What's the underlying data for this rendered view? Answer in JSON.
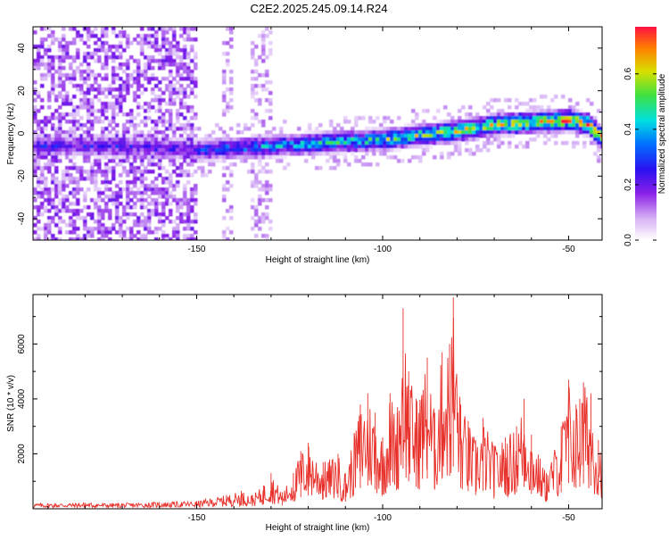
{
  "title": "C2E2.2025.245.09.14.R24",
  "colors": {
    "axis": "#000000",
    "snr_line": "#e8302a",
    "spectrogram_scale": [
      "#ffffff",
      "#c9a0f2",
      "#7a10e8",
      "#2a10f0",
      "#0080ff",
      "#00e0e0",
      "#40e040",
      "#d8e000",
      "#ff8000",
      "#ff1040"
    ]
  },
  "chart_data": [
    {
      "type": "heatmap",
      "xlabel": "Height of straight line (km)",
      "ylabel": "Frequency (Hz)",
      "xlim": [
        -194,
        -41
      ],
      "ylim": [
        -50,
        50
      ],
      "xticks": [
        -150,
        -100,
        -50
      ],
      "xtick_labels": [
        "-150",
        "-100",
        "-50"
      ],
      "yticks": [
        -40,
        -20,
        0,
        20,
        40
      ],
      "ytick_labels": [
        "-40",
        "-20",
        "0",
        "20",
        "40"
      ],
      "colorbar": {
        "label": "Normalized spectral amplitude",
        "range": [
          0,
          0.77
        ],
        "ticks": [
          0.0,
          0.2,
          0.4,
          0.6
        ],
        "tick_labels": [
          "0.0",
          "0.2",
          "0.4",
          "0.6"
        ]
      },
      "ridge": {
        "description_points": [
          [
            -174,
            -5
          ],
          [
            -150,
            -7
          ],
          [
            -130,
            -5
          ],
          [
            -110,
            -3
          ],
          [
            -100,
            -2
          ],
          [
            -90,
            0
          ],
          [
            -80,
            2
          ],
          [
            -70,
            5
          ],
          [
            -60,
            6
          ],
          [
            -50,
            7
          ],
          [
            -45,
            5
          ],
          [
            -42,
            -1
          ]
        ],
        "peak_amplitude": 0.77
      }
    },
    {
      "type": "line",
      "xlabel": "Height of straight line (km)",
      "ylabel": "SNR (10 * v/v)",
      "xlim": [
        -194,
        -41
      ],
      "ylim": [
        0,
        7800
      ],
      "xticks": [
        -150,
        -100,
        -50
      ],
      "xtick_labels": [
        "-150",
        "-100",
        "-50"
      ],
      "yticks": [
        2000,
        4000,
        6000
      ],
      "ytick_labels": [
        "2000",
        "4000",
        "6000"
      ],
      "series": [
        {
          "name": "",
          "x": [
            -194,
            -180,
            -170,
            -160,
            -150,
            -142,
            -138,
            -135,
            -132,
            -130,
            -127,
            -124,
            -122,
            -120,
            -116,
            -112,
            -110,
            -106,
            -104,
            -102,
            -100,
            -98,
            -96,
            -94.5,
            -93,
            -91,
            -88,
            -86,
            -84,
            -82,
            -81,
            -79,
            -77,
            -75,
            -73,
            -70,
            -67,
            -64,
            -62,
            -60,
            -56,
            -52,
            -50,
            -48,
            -47,
            -46,
            -44,
            -42
          ],
          "y": [
            200,
            220,
            200,
            250,
            280,
            500,
            650,
            500,
            850,
            1300,
            600,
            1300,
            2100,
            2400,
            1700,
            2000,
            1300,
            3800,
            4200,
            3500,
            2600,
            4200,
            3700,
            7300,
            5000,
            4000,
            5500,
            3500,
            5700,
            6000,
            7700,
            3800,
            3200,
            2500,
            3300,
            2300,
            2600,
            3000,
            4000,
            2700,
            1300,
            3000,
            4700,
            3800,
            4000,
            4600,
            4200,
            2500
          ]
        }
      ]
    }
  ]
}
